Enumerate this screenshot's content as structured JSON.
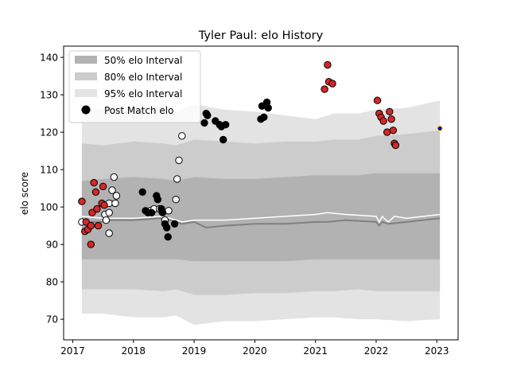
{
  "chart_data": {
    "type": "scatter",
    "title": "Tyler Paul: elo History",
    "xlabel": "",
    "ylabel": "elo score",
    "xlim": [
      2016.85,
      2023.35
    ],
    "ylim": [
      64.5,
      143
    ],
    "x_ticks": [
      2017,
      2018,
      2019,
      2020,
      2021,
      2022,
      2023
    ],
    "y_ticks": [
      70,
      80,
      90,
      100,
      110,
      120,
      130,
      140
    ],
    "legend": {
      "placement": "top-left",
      "entries": [
        "50% elo Interval",
        "80% elo Interval",
        "95% elo Interval",
        "Post Match elo"
      ]
    },
    "colors": {
      "band50": "#b2b2b2",
      "band80": "#cccccc",
      "band95": "#e3e3e3",
      "median_line": "#808080",
      "mean_line": "#ffffff",
      "point_white": "#ffffff",
      "point_black": "#000000",
      "point_red": "#d62728",
      "point_blue": "#0000cc",
      "point_outline": "#000000"
    },
    "bands": [
      {
        "name": "95% elo Interval",
        "x": [
          2017.15,
          2017.5,
          2018.0,
          2018.5,
          2018.7,
          2019.0,
          2019.5,
          2020.0,
          2020.5,
          2021.0,
          2021.3,
          2021.7,
          2022.0,
          2022.5,
          2023.05
        ],
        "lower": [
          71.5,
          71.5,
          70.5,
          70.5,
          71.0,
          68.5,
          69.5,
          69.5,
          70.0,
          70.5,
          70.5,
          70.0,
          70.0,
          69.5,
          70.0
        ],
        "upper": [
          125.5,
          126.5,
          127.5,
          126.5,
          125.5,
          127.5,
          126.0,
          125.5,
          124.5,
          123.5,
          125.0,
          125.0,
          126.0,
          126.5,
          128.5
        ]
      },
      {
        "name": "80% elo Interval",
        "x": [
          2017.15,
          2017.5,
          2018.0,
          2018.5,
          2018.7,
          2019.0,
          2019.5,
          2020.0,
          2020.5,
          2021.0,
          2021.3,
          2021.7,
          2022.0,
          2022.5,
          2023.05
        ],
        "lower": [
          78.0,
          78.0,
          78.0,
          77.5,
          78.0,
          76.5,
          76.5,
          77.0,
          77.0,
          77.5,
          77.5,
          78.0,
          77.5,
          77.5,
          77.5
        ],
        "upper": [
          117.0,
          116.5,
          117.5,
          117.0,
          116.5,
          118.0,
          117.5,
          117.0,
          117.5,
          117.5,
          118.0,
          118.0,
          119.0,
          119.5,
          120.5
        ]
      },
      {
        "name": "50% elo Interval",
        "x": [
          2017.15,
          2017.5,
          2018.0,
          2018.5,
          2018.7,
          2019.0,
          2019.5,
          2020.0,
          2020.5,
          2021.0,
          2021.3,
          2021.7,
          2022.0,
          2022.5,
          2023.05
        ],
        "lower": [
          86.0,
          86.0,
          86.0,
          86.0,
          86.0,
          85.5,
          85.5,
          85.5,
          85.5,
          86.0,
          86.0,
          86.0,
          86.0,
          86.0,
          86.0
        ],
        "upper": [
          107.0,
          107.5,
          108.0,
          107.5,
          107.0,
          108.0,
          107.5,
          107.5,
          108.0,
          108.5,
          108.5,
          108.5,
          109.0,
          109.0,
          109.0
        ]
      }
    ],
    "median_line": {
      "x": [
        2017.15,
        2017.5,
        2017.6,
        2018.0,
        2018.45,
        2018.6,
        2018.8,
        2019.0,
        2019.2,
        2019.5,
        2020.0,
        2020.5,
        2021.0,
        2021.2,
        2021.5,
        2022.0,
        2022.05,
        2022.1,
        2022.2,
        2022.5,
        2023.05
      ],
      "y": [
        96.0,
        96.0,
        96.5,
        96.5,
        97.0,
        96.5,
        95.5,
        96.0,
        94.5,
        95.0,
        95.5,
        95.5,
        96.0,
        96.0,
        96.5,
        96.0,
        95.0,
        96.0,
        95.5,
        96.0,
        97.0
      ]
    },
    "mean_line": {
      "x": [
        2017.15,
        2017.5,
        2017.6,
        2018.0,
        2018.45,
        2018.6,
        2018.8,
        2019.0,
        2019.2,
        2019.5,
        2020.0,
        2020.5,
        2021.0,
        2021.2,
        2021.5,
        2022.0,
        2022.05,
        2022.1,
        2022.2,
        2022.3,
        2022.5,
        2023.05
      ],
      "y": [
        97.5,
        97.0,
        97.0,
        97.0,
        97.5,
        97.0,
        96.0,
        96.5,
        96.5,
        96.5,
        97.0,
        97.5,
        98.0,
        98.5,
        98.0,
        97.5,
        96.0,
        97.5,
        96.0,
        97.5,
        97.0,
        98.0
      ]
    },
    "series": [
      {
        "name": "Post Match elo",
        "color": "#ffffff",
        "points": [
          [
            2017.15,
            96.0
          ],
          [
            2017.53,
            98.0
          ],
          [
            2017.55,
            96.5
          ],
          [
            2017.6,
            101.0
          ],
          [
            2017.6,
            98.5
          ],
          [
            2017.6,
            93.0
          ],
          [
            2017.65,
            104.5
          ],
          [
            2017.68,
            108.0
          ],
          [
            2017.7,
            101.0
          ],
          [
            2017.72,
            103.0
          ],
          [
            2018.28,
            99.0
          ],
          [
            2018.34,
            99.5
          ],
          [
            2018.43,
            99.5
          ],
          [
            2018.52,
            96.5
          ],
          [
            2018.58,
            99.0
          ],
          [
            2018.7,
            102.0
          ],
          [
            2018.72,
            107.5
          ],
          [
            2018.75,
            112.5
          ],
          [
            2018.8,
            119.0
          ]
        ]
      },
      {
        "name": "",
        "color": "#000000",
        "points": [
          [
            2018.15,
            104.0
          ],
          [
            2018.2,
            99.0
          ],
          [
            2018.24,
            98.5
          ],
          [
            2018.3,
            98.5
          ],
          [
            2018.38,
            103.0
          ],
          [
            2018.4,
            102.0
          ],
          [
            2018.46,
            99.5
          ],
          [
            2018.48,
            98.5
          ],
          [
            2018.52,
            95.5
          ],
          [
            2018.55,
            94.5
          ],
          [
            2018.57,
            92.0
          ],
          [
            2018.68,
            95.5
          ],
          [
            2019.17,
            122.5
          ],
          [
            2019.2,
            125.0
          ],
          [
            2019.22,
            124.5
          ],
          [
            2019.35,
            123.0
          ],
          [
            2019.42,
            122.0
          ],
          [
            2019.45,
            121.5
          ],
          [
            2019.48,
            118.0
          ],
          [
            2019.52,
            122.0
          ],
          [
            2020.1,
            123.5
          ],
          [
            2020.12,
            127.0
          ],
          [
            2020.15,
            124.0
          ],
          [
            2020.2,
            128.0
          ],
          [
            2020.22,
            126.5
          ]
        ]
      },
      {
        "name": "",
        "color": "#d62728",
        "points": [
          [
            2017.15,
            101.5
          ],
          [
            2017.2,
            93.5
          ],
          [
            2017.22,
            96.0
          ],
          [
            2017.25,
            94.0
          ],
          [
            2017.3,
            90.0
          ],
          [
            2017.3,
            95.0
          ],
          [
            2017.32,
            98.5
          ],
          [
            2017.35,
            106.5
          ],
          [
            2017.38,
            104.0
          ],
          [
            2017.4,
            99.5
          ],
          [
            2017.42,
            95.0
          ],
          [
            2017.48,
            101.0
          ],
          [
            2017.5,
            105.5
          ],
          [
            2017.52,
            100.5
          ],
          [
            2021.15,
            131.5
          ],
          [
            2021.2,
            138.0
          ],
          [
            2021.22,
            133.5
          ],
          [
            2021.28,
            133.0
          ],
          [
            2022.02,
            128.5
          ],
          [
            2022.05,
            125.0
          ],
          [
            2022.08,
            124.0
          ],
          [
            2022.12,
            123.0
          ],
          [
            2022.18,
            120.0
          ],
          [
            2022.22,
            125.5
          ],
          [
            2022.25,
            123.5
          ],
          [
            2022.28,
            120.5
          ],
          [
            2022.3,
            117.0
          ],
          [
            2022.32,
            116.5
          ]
        ]
      },
      {
        "name": "",
        "color": "#0000cc",
        "points": [
          [
            2023.05,
            121.0
          ]
        ]
      }
    ]
  }
}
